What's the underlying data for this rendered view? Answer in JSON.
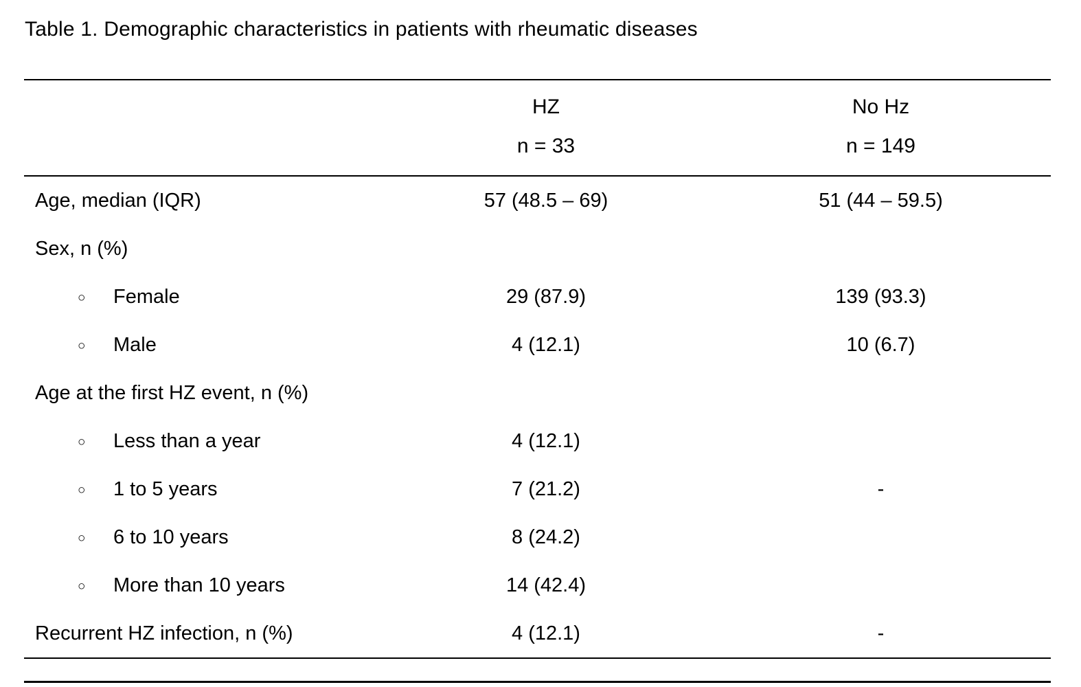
{
  "title": "Table 1. Demographic characteristics in patients with rheumatic diseases",
  "table": {
    "header": {
      "col1_line1": "HZ",
      "col1_line2": "n = 33",
      "col2_line1": "No Hz",
      "col2_line2": "n = 149"
    },
    "rows": [
      {
        "label": "Age, median (IQR)",
        "bullet": false,
        "hz": "57 (48.5 – 69)",
        "nohz": "51 (44 – 59.5)"
      },
      {
        "label": "Sex, n (%)",
        "bullet": false,
        "hz": "",
        "nohz": ""
      },
      {
        "label": "Female",
        "bullet": true,
        "hz": "29 (87.9)",
        "nohz": "139 (93.3)"
      },
      {
        "label": "Male",
        "bullet": true,
        "hz": "4 (12.1)",
        "nohz": "10 (6.7)"
      },
      {
        "label": "Age at the first HZ event, n (%)",
        "bullet": false,
        "hz": "",
        "nohz": ""
      },
      {
        "label": "Less than a year",
        "bullet": true,
        "hz": "4 (12.1)",
        "nohz": ""
      },
      {
        "label": "1 to 5 years",
        "bullet": true,
        "hz": "7 (21.2)",
        "nohz": "-"
      },
      {
        "label": "6 to 10 years",
        "bullet": true,
        "hz": "8 (24.2)",
        "nohz": ""
      },
      {
        "label": "More than 10 years",
        "bullet": true,
        "hz": "14 (42.4)",
        "nohz": ""
      },
      {
        "label": "Recurrent HZ infection, n (%)",
        "bullet": false,
        "hz": "4 (12.1)",
        "nohz": "-"
      }
    ],
    "bullet_glyph": "○"
  }
}
